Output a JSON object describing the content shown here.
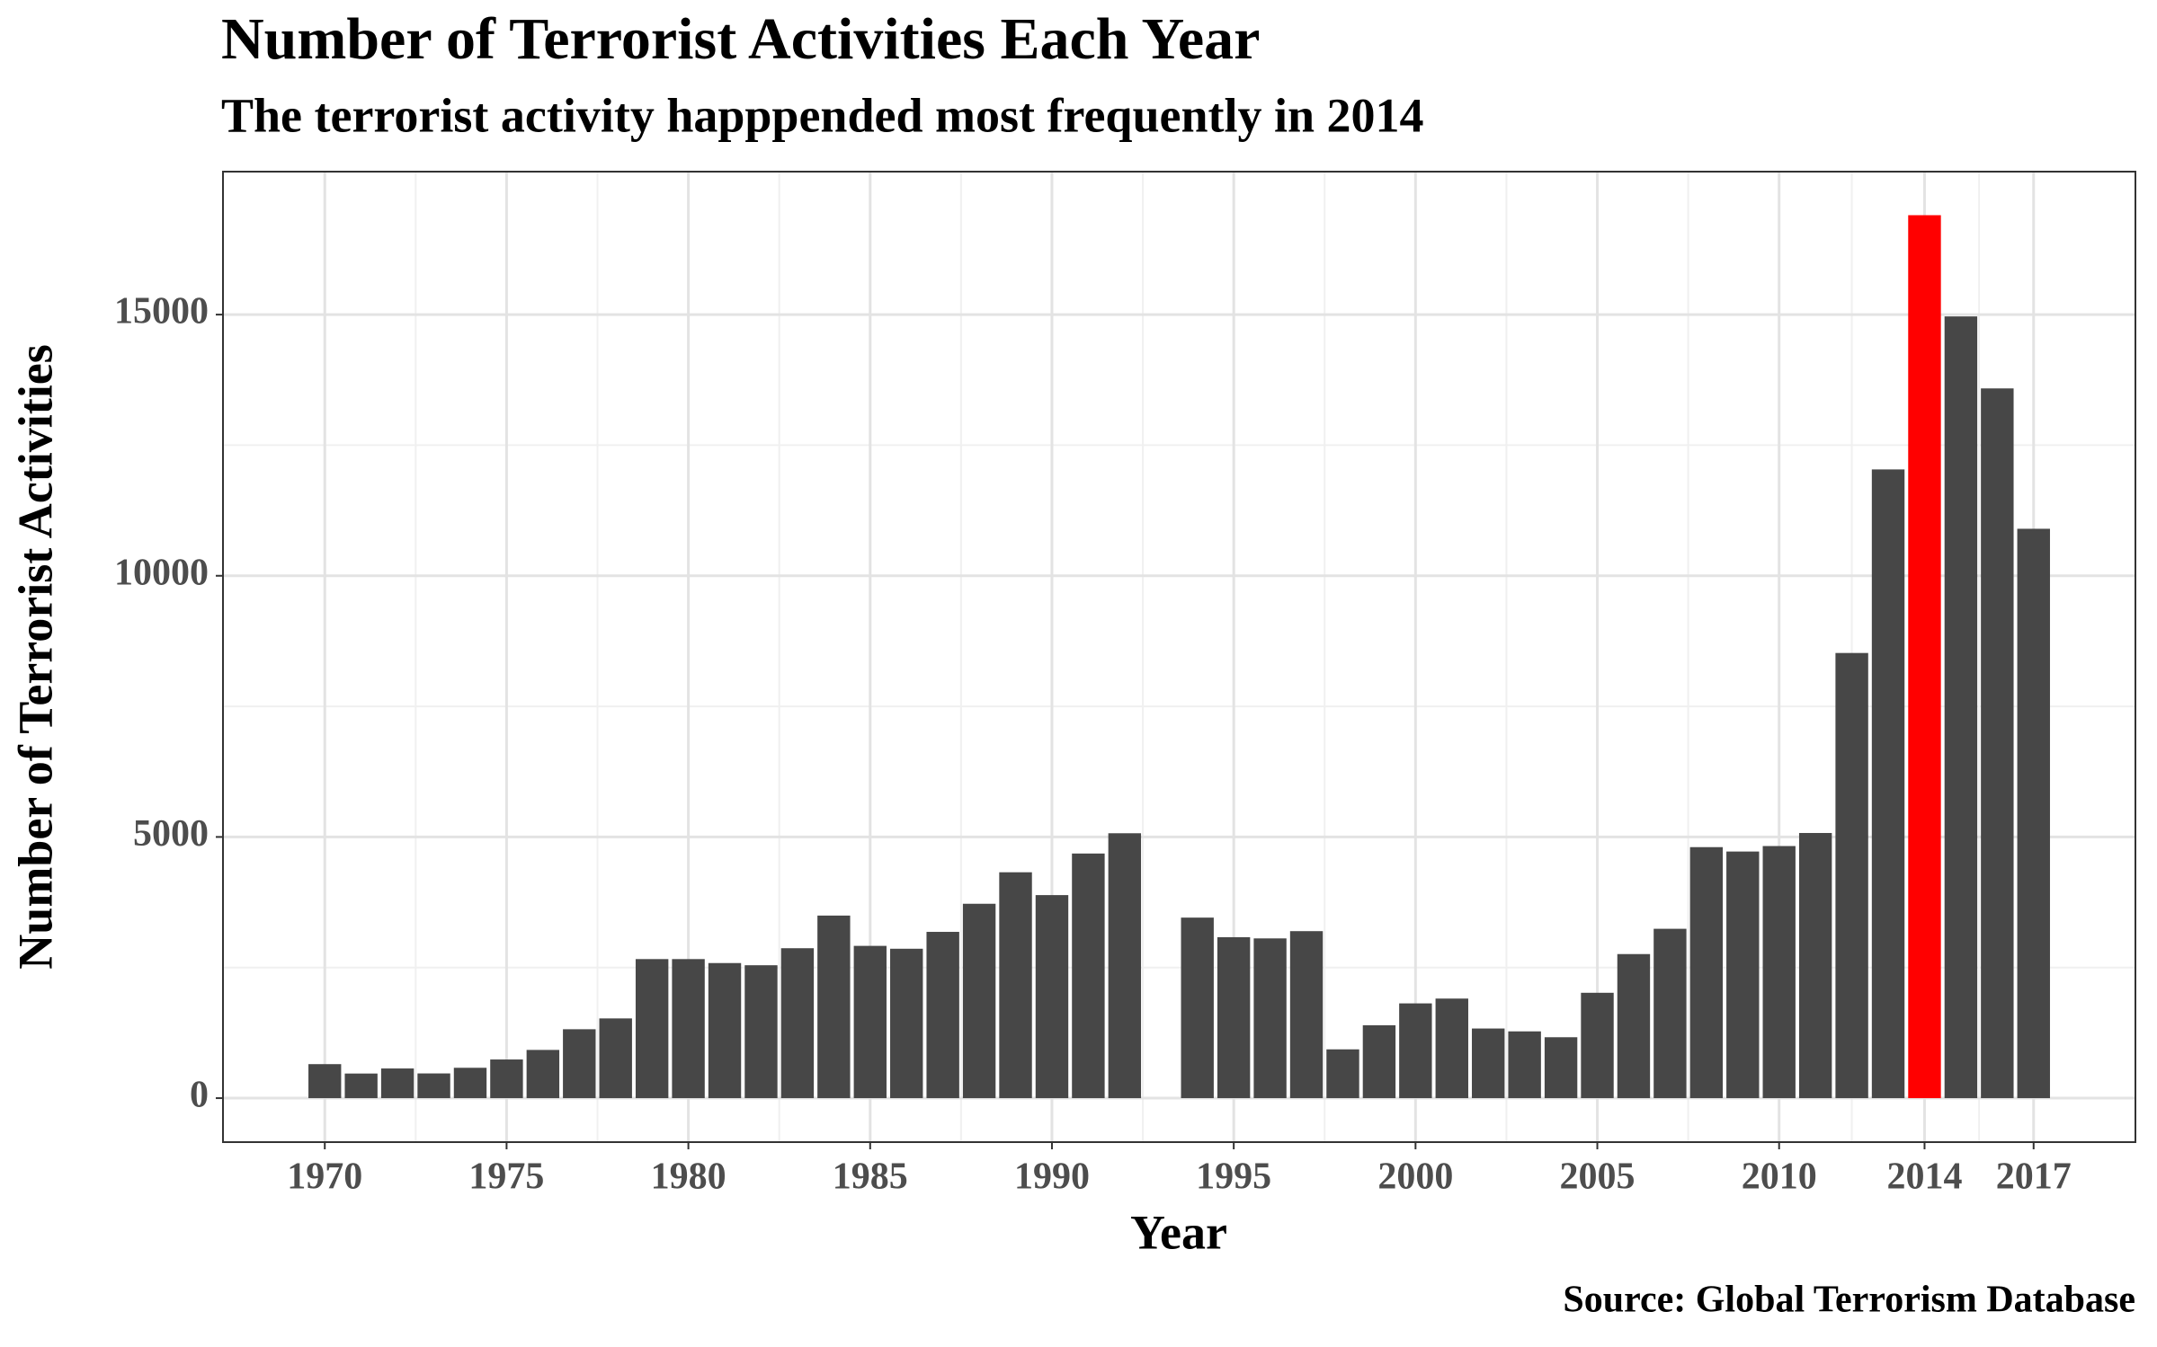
{
  "chart_data": {
    "type": "bar",
    "title": "Number of Terrorist Activities Each Year",
    "subtitle": "The terrorist activity happpended most frequently in 2014",
    "x_label": "Year",
    "y_label": "Number of Terrorist Activities",
    "caption": "Source: Global Terrorism Database",
    "x": [
      1970,
      1971,
      1972,
      1973,
      1974,
      1975,
      1976,
      1977,
      1978,
      1979,
      1980,
      1981,
      1982,
      1983,
      1984,
      1985,
      1986,
      1987,
      1988,
      1989,
      1990,
      1991,
      1992,
      1994,
      1995,
      1996,
      1997,
      1998,
      1999,
      2000,
      2001,
      2002,
      2003,
      2004,
      2005,
      2006,
      2007,
      2008,
      2009,
      2010,
      2011,
      2012,
      2013,
      2014,
      2015,
      2016,
      2017
    ],
    "values": [
      651,
      471,
      568,
      473,
      581,
      740,
      923,
      1319,
      1526,
      2662,
      2662,
      2586,
      2544,
      2870,
      3495,
      2915,
      2860,
      3183,
      3721,
      4324,
      3887,
      4683,
      5071,
      3456,
      3081,
      3058,
      3197,
      934,
      1395,
      1814,
      1906,
      1333,
      1278,
      1166,
      2017,
      2758,
      3242,
      4805,
      4721,
      4826,
      5076,
      8522,
      12036,
      16903,
      14965,
      13587,
      10900
    ],
    "colors": [
      "#474747",
      "#474747",
      "#474747",
      "#474747",
      "#474747",
      "#474747",
      "#474747",
      "#474747",
      "#474747",
      "#474747",
      "#474747",
      "#474747",
      "#474747",
      "#474747",
      "#474747",
      "#474747",
      "#474747",
      "#474747",
      "#474747",
      "#474747",
      "#474747",
      "#474747",
      "#474747",
      "#474747",
      "#474747",
      "#474747",
      "#474747",
      "#474747",
      "#474747",
      "#474747",
      "#474747",
      "#474747",
      "#474747",
      "#474747",
      "#474747",
      "#474747",
      "#474747",
      "#474747",
      "#474747",
      "#474747",
      "#474747",
      "#474747",
      "#474747",
      "#ff0000",
      "#474747",
      "#474747",
      "#474747"
    ],
    "xlim": [
      1967.2,
      2019.8
    ],
    "xticks": [
      1970,
      1975,
      1980,
      1985,
      1990,
      1995,
      2000,
      2005,
      2010,
      2014,
      2017
    ],
    "x_minor_ticks": [
      1972.5,
      1977.5,
      1982.5,
      1987.5,
      1992.5,
      1997.5,
      2002.5,
      2007.5,
      2012,
      2015.5
    ],
    "ylim": [
      -842,
      17737
    ],
    "yticks": [
      0,
      5000,
      10000,
      15000
    ],
    "y_minor_ticks": [
      2500,
      7500,
      12500
    ],
    "grid": true
  }
}
